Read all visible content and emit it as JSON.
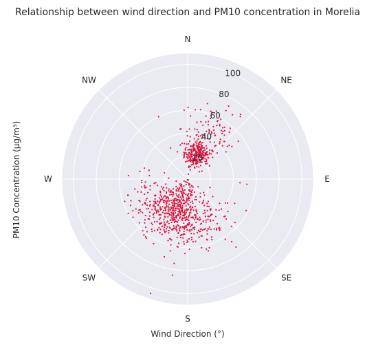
{
  "chart_data": {
    "type": "scatter",
    "subtype": "polar",
    "title": "Relationship between wind direction and PM10 concentration in Morelia",
    "xlabel": "Wind Direction (°)",
    "ylabel": "PM10 Concentration (µg/m³)",
    "direction_labels": [
      "N",
      "NE",
      "E",
      "SE",
      "S",
      "SW",
      "W",
      "NW"
    ],
    "direction_angles_deg": [
      0,
      45,
      90,
      135,
      180,
      225,
      270,
      315
    ],
    "radial_ticks": [
      "20",
      "40",
      "60",
      "80",
      "100"
    ],
    "radial_tick_values": [
      20,
      40,
      60,
      80,
      100
    ],
    "rlim": [
      0,
      110
    ],
    "grid": true,
    "colors": {
      "points": "#dc143c",
      "background": "#eaeaf2",
      "grid": "#ffffff",
      "text": "#262626"
    },
    "clusters": [
      {
        "direction_center_deg": 20,
        "direction_spread_deg": 14,
        "r_center": 24,
        "r_spread": 6,
        "count": 260
      },
      {
        "direction_center_deg": 25,
        "direction_spread_deg": 16,
        "r_center": 45,
        "r_spread": 12,
        "count": 100
      },
      {
        "direction_center_deg": 200,
        "direction_spread_deg": 25,
        "r_center": 32,
        "r_spread": 13,
        "count": 540
      },
      {
        "direction_center_deg": 160,
        "direction_spread_deg": 22,
        "r_center": 40,
        "r_spread": 15,
        "count": 110
      },
      {
        "direction_center_deg": 250,
        "direction_spread_deg": 20,
        "r_center": 35,
        "r_spread": 12,
        "count": 40
      }
    ],
    "outliers": [
      {
        "direction_deg": 198,
        "r": 105
      },
      {
        "direction_deg": 189,
        "r": 85
      },
      {
        "direction_deg": 255,
        "r": 54
      },
      {
        "direction_deg": 175,
        "r": 55
      },
      {
        "direction_deg": 95,
        "r": 52
      },
      {
        "direction_deg": 335,
        "r": 60
      },
      {
        "direction_deg": 20,
        "r": 62
      },
      {
        "direction_deg": 148,
        "r": 62
      },
      {
        "direction_deg": 240,
        "r": 60
      }
    ]
  }
}
